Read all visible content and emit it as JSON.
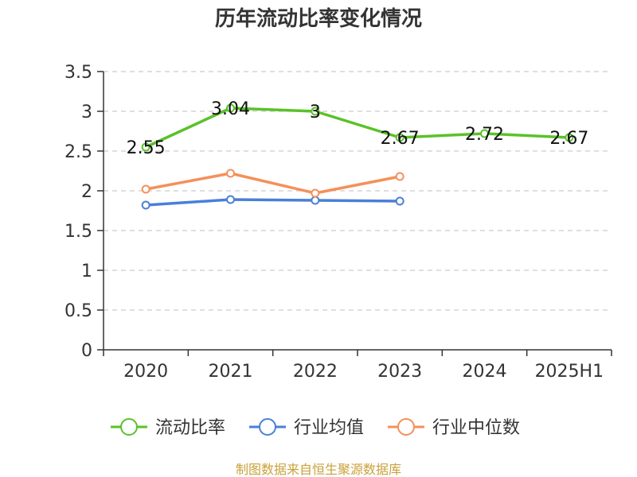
{
  "chart_data": {
    "type": "line",
    "title": "历年流动比率变化情况",
    "categories": [
      "2020",
      "2021",
      "2022",
      "2023",
      "2024",
      "2025H1"
    ],
    "ylim": [
      0,
      3.5
    ],
    "yticks": [
      "0",
      "0.5",
      "1",
      "1.5",
      "2",
      "2.5",
      "3",
      "3.5"
    ],
    "grid": true,
    "legend_position": "bottom",
    "series": [
      {
        "name": "流动比率",
        "color": "#5ac229",
        "values": [
          2.55,
          3.04,
          3.0,
          2.67,
          2.72,
          2.67
        ],
        "labels": [
          "2.55",
          "3.04",
          "3",
          "2.67",
          "2.72",
          "2.67"
        ]
      },
      {
        "name": "行业均值",
        "color": "#4a7fd8",
        "values": [
          1.82,
          1.89,
          1.88,
          1.87,
          null,
          null
        ]
      },
      {
        "name": "行业中位数",
        "color": "#f4905a",
        "values": [
          2.02,
          2.22,
          1.97,
          2.18,
          null,
          null
        ]
      }
    ]
  },
  "source_note": "制图数据来自恒生聚源数据库"
}
